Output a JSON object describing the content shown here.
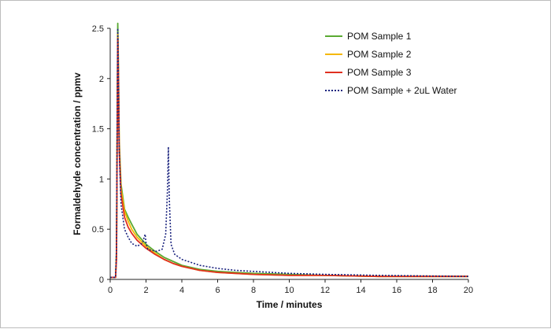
{
  "chart_data": {
    "type": "line",
    "title": "",
    "xlabel": "Time / minutes",
    "ylabel": "Formaldehyde concentration / ppmv",
    "xlim": [
      0,
      20
    ],
    "ylim": [
      0,
      2.5
    ],
    "xticks": [
      "0",
      "2",
      "4",
      "6",
      "8",
      "10",
      "12",
      "14",
      "16",
      "18",
      "20"
    ],
    "yticks": [
      "0",
      "0.5",
      "1",
      "1.5",
      "2",
      "2.5"
    ],
    "grid": false,
    "legend_position": "top-right",
    "series": [
      {
        "name": "POM Sample 1",
        "color": "#5aaa32",
        "style": "solid",
        "x": [
          0,
          0.3,
          0.35,
          0.38,
          0.42,
          0.46,
          0.5,
          0.6,
          0.8,
          1.0,
          1.2,
          1.5,
          2.0,
          2.5,
          3.0,
          3.5,
          4.0,
          5.0,
          6.0,
          7.0,
          8.0,
          10.0,
          12.0,
          15.0,
          20.0
        ],
        "y": [
          0.02,
          0.02,
          0.3,
          1.2,
          2.55,
          2.1,
          1.4,
          0.95,
          0.7,
          0.62,
          0.55,
          0.45,
          0.35,
          0.28,
          0.22,
          0.18,
          0.14,
          0.1,
          0.08,
          0.07,
          0.06,
          0.05,
          0.04,
          0.03,
          0.03
        ]
      },
      {
        "name": "POM Sample 2",
        "color": "#f5b800",
        "style": "solid",
        "x": [
          0,
          0.3,
          0.35,
          0.38,
          0.42,
          0.46,
          0.5,
          0.6,
          0.8,
          1.0,
          1.2,
          1.5,
          2.0,
          2.5,
          3.0,
          3.5,
          4.0,
          5.0,
          6.0,
          7.0,
          8.0,
          10.0,
          12.0,
          15.0,
          20.0
        ],
        "y": [
          0.02,
          0.02,
          0.25,
          1.1,
          2.45,
          2.0,
          1.35,
          0.9,
          0.68,
          0.58,
          0.5,
          0.42,
          0.33,
          0.26,
          0.2,
          0.16,
          0.13,
          0.09,
          0.07,
          0.06,
          0.05,
          0.04,
          0.04,
          0.03,
          0.03
        ]
      },
      {
        "name": "POM Sample 3",
        "color": "#e03020",
        "style": "solid",
        "x": [
          0,
          0.3,
          0.35,
          0.38,
          0.42,
          0.46,
          0.5,
          0.6,
          0.8,
          1.0,
          1.2,
          1.5,
          2.0,
          2.5,
          3.0,
          3.5,
          4.0,
          5.0,
          6.0,
          7.0,
          8.0,
          10.0,
          12.0,
          15.0,
          20.0
        ],
        "y": [
          0.02,
          0.02,
          0.2,
          1.0,
          2.4,
          1.95,
          1.3,
          0.85,
          0.62,
          0.52,
          0.46,
          0.39,
          0.31,
          0.25,
          0.2,
          0.16,
          0.13,
          0.09,
          0.07,
          0.06,
          0.05,
          0.04,
          0.04,
          0.03,
          0.03
        ]
      },
      {
        "name": "POM Sample + 2uL Water",
        "color": "#1a237e",
        "style": "dotted",
        "x": [
          0,
          0.3,
          0.35,
          0.38,
          0.42,
          0.46,
          0.5,
          0.6,
          0.8,
          1.0,
          1.2,
          1.5,
          1.8,
          1.9,
          1.95,
          2.0,
          2.1,
          2.3,
          2.6,
          2.9,
          3.1,
          3.2,
          3.25,
          3.3,
          3.4,
          3.6,
          4.0,
          5.0,
          6.0,
          7.0,
          8.0,
          10.0,
          12.0,
          15.0,
          20.0
        ],
        "y": [
          0.02,
          0.02,
          0.3,
          1.25,
          2.5,
          2.0,
          1.3,
          0.75,
          0.5,
          0.42,
          0.36,
          0.33,
          0.36,
          0.42,
          0.45,
          0.36,
          0.3,
          0.29,
          0.28,
          0.3,
          0.45,
          0.9,
          1.32,
          0.8,
          0.35,
          0.25,
          0.2,
          0.14,
          0.11,
          0.09,
          0.08,
          0.06,
          0.05,
          0.04,
          0.03
        ]
      }
    ]
  }
}
